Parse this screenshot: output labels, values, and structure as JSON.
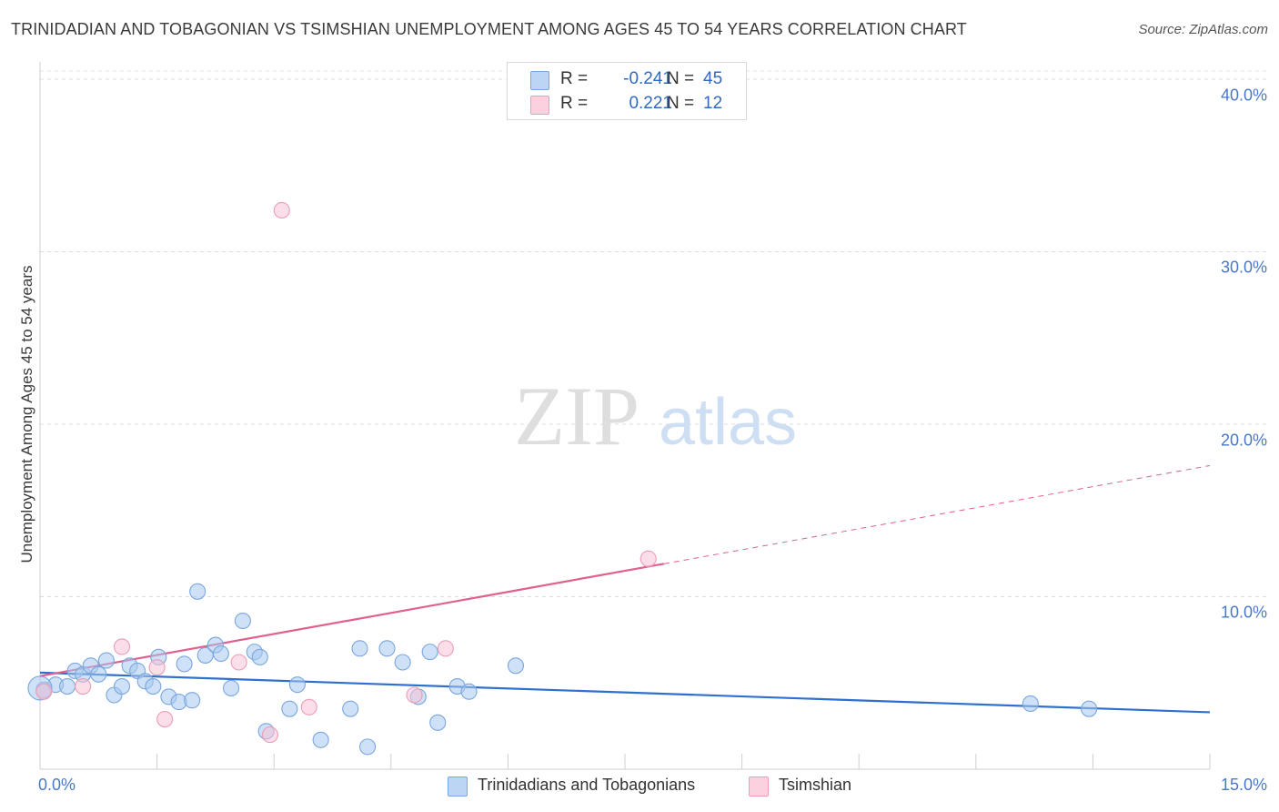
{
  "chart_data": {
    "type": "scatter",
    "title": "TRINIDADIAN AND TOBAGONIAN VS TSIMSHIAN UNEMPLOYMENT AMONG AGES 45 TO 54 YEARS CORRELATION CHART",
    "source": "Source: ZipAtlas.com",
    "xlabel": "",
    "ylabel": "Unemployment Among Ages 45 to 54 years",
    "xlim": [
      0,
      15
    ],
    "ylim": [
      0,
      41
    ],
    "x_tick_labels": [
      {
        "value": 0,
        "label": "0.0%"
      },
      {
        "value": 15,
        "label": "15.0%"
      }
    ],
    "y_tick_labels": [
      {
        "value": 10,
        "label": "10.0%"
      },
      {
        "value": 20,
        "label": "20.0%"
      },
      {
        "value": 30,
        "label": "30.0%"
      },
      {
        "value": 40,
        "label": "40.0%"
      }
    ],
    "x_minor_ticks": [
      1.5,
      3.0,
      4.5,
      6.0,
      7.5,
      9.0,
      10.5,
      12.0,
      13.5,
      15.0
    ],
    "grid": true,
    "watermark": "ZIPatlas",
    "series": [
      {
        "name": "Trinidadians and Tobagonians",
        "color": "#a8c8f0",
        "stroke": "#7aa6dd",
        "line_color": "#2f6fcf",
        "R": "-0.241",
        "N": "45",
        "trend": {
          "x0": 0.0,
          "y0": 5.6,
          "x1": 15.0,
          "y1": 3.3,
          "solid_to": 15.0
        },
        "points": [
          [
            0.05,
            4.6
          ],
          [
            0.2,
            4.9
          ],
          [
            0.35,
            4.8
          ],
          [
            0.45,
            5.7
          ],
          [
            0.55,
            5.5
          ],
          [
            0.65,
            6.0
          ],
          [
            0.75,
            5.5
          ],
          [
            0.85,
            6.3
          ],
          [
            0.95,
            4.3
          ],
          [
            1.05,
            4.8
          ],
          [
            1.15,
            6.0
          ],
          [
            1.25,
            5.7
          ],
          [
            1.35,
            5.1
          ],
          [
            1.45,
            4.8
          ],
          [
            1.52,
            6.5
          ],
          [
            1.65,
            4.2
          ],
          [
            1.78,
            3.9
          ],
          [
            1.85,
            6.1
          ],
          [
            1.95,
            4.0
          ],
          [
            2.02,
            10.3
          ],
          [
            2.12,
            6.6
          ],
          [
            2.25,
            7.2
          ],
          [
            2.32,
            6.7
          ],
          [
            2.45,
            4.7
          ],
          [
            2.6,
            8.6
          ],
          [
            2.75,
            6.8
          ],
          [
            2.82,
            6.5
          ],
          [
            2.9,
            2.2
          ],
          [
            3.2,
            3.5
          ],
          [
            3.3,
            4.9
          ],
          [
            3.6,
            1.7
          ],
          [
            3.98,
            3.5
          ],
          [
            4.1,
            7.0
          ],
          [
            4.2,
            1.3
          ],
          [
            4.45,
            7.0
          ],
          [
            4.65,
            6.2
          ],
          [
            4.85,
            4.2
          ],
          [
            5.0,
            6.8
          ],
          [
            5.1,
            2.7
          ],
          [
            5.35,
            4.8
          ],
          [
            5.5,
            4.5
          ],
          [
            6.1,
            6.0
          ],
          [
            12.7,
            3.8
          ],
          [
            13.45,
            3.5
          ],
          [
            0.0,
            4.7
          ]
        ]
      },
      {
        "name": "Tsimshian",
        "color": "#f8c3d5",
        "stroke": "#ec9db8",
        "line_color": "#e0608f",
        "R": "0.221",
        "N": "12",
        "trend": {
          "x0": 0.0,
          "y0": 5.4,
          "x1": 15.0,
          "y1": 17.6,
          "solid_to": 8.0
        },
        "points": [
          [
            0.05,
            4.5
          ],
          [
            0.55,
            4.8
          ],
          [
            1.05,
            7.1
          ],
          [
            1.5,
            5.9
          ],
          [
            1.6,
            2.9
          ],
          [
            2.55,
            6.2
          ],
          [
            2.95,
            2.0
          ],
          [
            3.1,
            32.4
          ],
          [
            3.45,
            3.6
          ],
          [
            4.8,
            4.3
          ],
          [
            5.2,
            7.0
          ],
          [
            7.8,
            12.2
          ]
        ]
      }
    ]
  },
  "stats_box": {
    "rows": [
      {
        "r_label": "R =",
        "r_value": "-0.241",
        "n_label": "N =",
        "n_value": "45"
      },
      {
        "r_label": "R =",
        "r_value": "0.221",
        "n_label": "N =",
        "n_value": "12"
      }
    ]
  },
  "legend": {
    "items": [
      "Trinidadians and Tobagonians",
      "Tsimshian"
    ]
  }
}
